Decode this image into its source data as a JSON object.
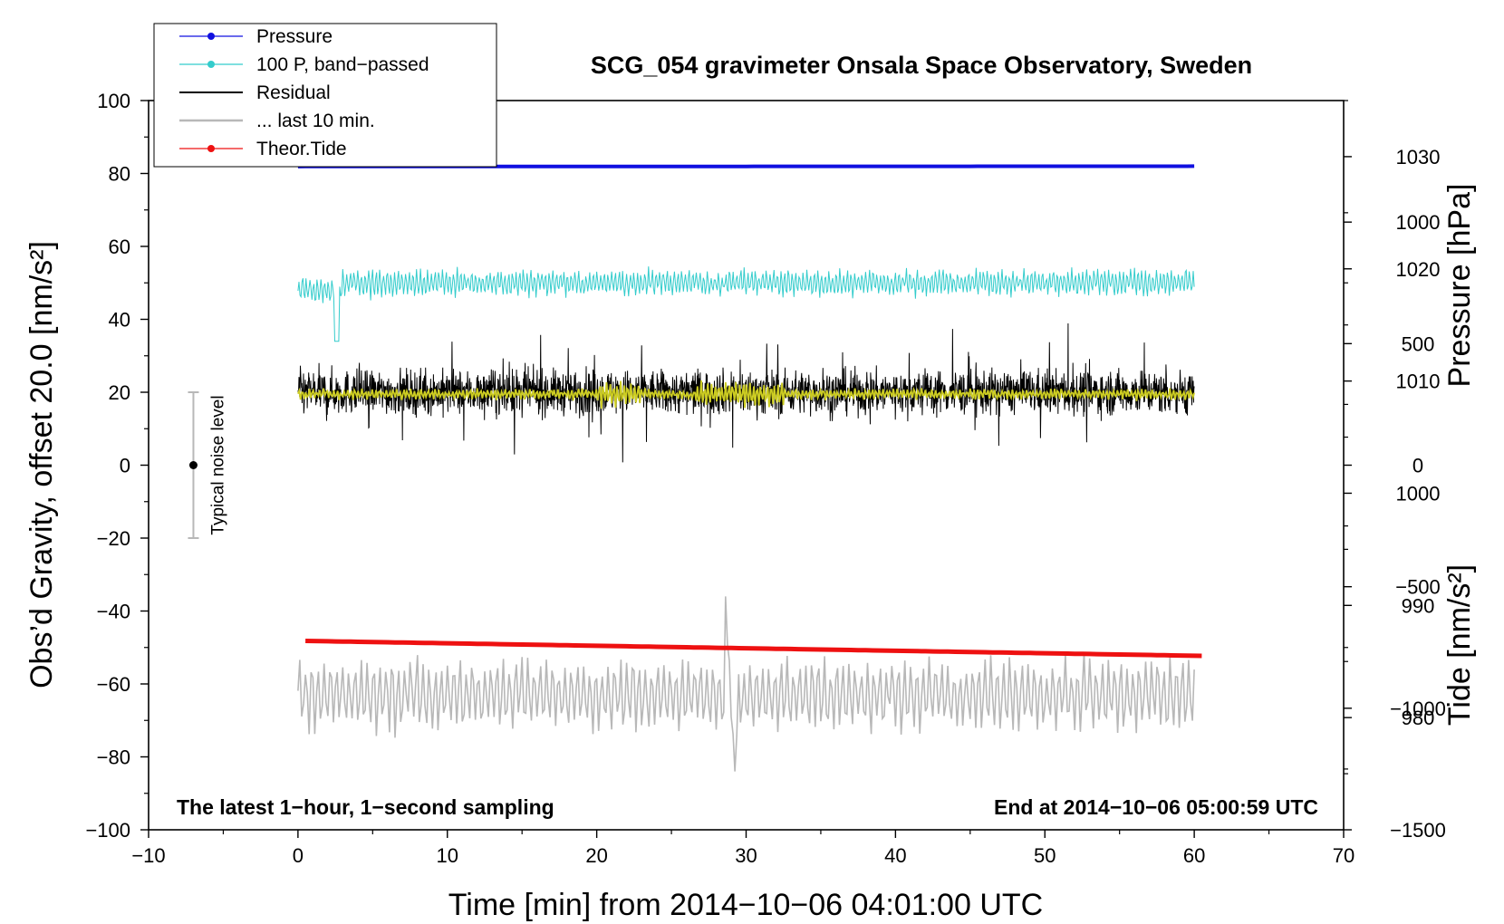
{
  "chart_data": {
    "type": "line",
    "title": "SCG_054 gravimeter Onsala Space Observatory, Sweden",
    "xlabel": "Time [min] from 2014−10−06 04:01:00 UTC",
    "ylabel_left": "Obs’d Gravity, offset 20.0 [nm/s²]",
    "ylabel_right_top": "Pressure [hPa]",
    "ylabel_right_bottom": "Tide [nm/s²]",
    "xlim": [
      -10,
      70
    ],
    "ylim": [
      -100,
      100
    ],
    "pressure_axis_range": [
      970,
      1035
    ],
    "tide_axis_range": [
      -1500,
      1500
    ],
    "x_ticks": [
      -10,
      0,
      10,
      20,
      30,
      40,
      50,
      60,
      70
    ],
    "x_tick_labels": [
      "−10",
      "0",
      "10",
      "20",
      "30",
      "40",
      "50",
      "60",
      "70"
    ],
    "y_ticks": [
      100,
      80,
      60,
      40,
      20,
      0,
      -20,
      -40,
      -60,
      -80,
      -100
    ],
    "y_tick_labels": [
      "100",
      "80",
      "60",
      "40",
      "20",
      "0",
      "−20",
      "−40",
      "−60",
      "−80",
      "−100"
    ],
    "pressure_ticks": [
      1030,
      1020,
      1010,
      1000,
      990,
      980
    ],
    "pressure_tick_labels": [
      "1030",
      "1020",
      "1010",
      "1000",
      "990",
      "980"
    ],
    "tide_ticks": [
      1000,
      500,
      0,
      -500,
      -1000,
      -1500
    ],
    "tide_tick_labels": [
      "1000",
      "500",
      "0",
      "−500",
      "−1000",
      "−1500"
    ],
    "legend": [
      {
        "label": "Pressure",
        "color": "#1010e0",
        "marker": true
      },
      {
        "label": "100 P, band−passed",
        "color": "#33cccc",
        "marker": true
      },
      {
        "label": "Residual",
        "color": "#000000",
        "marker": false
      },
      {
        "label": "... last 10 min.",
        "color": "#b8b8b8",
        "marker": false
      },
      {
        "label": "Theor.Tide",
        "color": "#ee1111",
        "marker": true
      }
    ],
    "legend_position": "top-left",
    "series": [
      {
        "name": "Pressure",
        "color": "#1010e0",
        "x_range": [
          0,
          60
        ],
        "value_start": 81.9,
        "value_end": 82.0,
        "unit": "left axis"
      },
      {
        "name": "100 P, band−passed",
        "color": "#33cccc",
        "x_range": [
          0,
          60
        ],
        "mean": 50,
        "amplitude": 4,
        "min": 33,
        "max": 59
      },
      {
        "name": "Residual",
        "color": "#000000",
        "x_range": [
          0,
          60
        ],
        "mean": 20,
        "amplitude": 10,
        "min": -3,
        "max": 44
      },
      {
        "name": "Residual smoothed",
        "color": "#cccc22",
        "x_range": [
          0,
          60
        ],
        "mean": 19.5,
        "amplitude": 1.5
      },
      {
        "name": "... last 10 min.",
        "color": "#b8b8b8",
        "x_range": [
          0,
          60
        ],
        "mean": -63,
        "amplitude": 9,
        "min": -84,
        "max": -36
      },
      {
        "name": "Theor.Tide",
        "color": "#ee1111",
        "x_range": [
          0.5,
          60.5
        ],
        "value_start": -48.2,
        "value_end": -52.3
      }
    ],
    "noise_level": {
      "label": "Typical noise level",
      "x": -7,
      "center": 0,
      "low": -20,
      "high": 20,
      "color": "#b8b8b8"
    },
    "annotation_left": "The latest 1−hour, 1−second sampling",
    "annotation_right": "End at 2014−10−06 05:00:59 UTC"
  }
}
